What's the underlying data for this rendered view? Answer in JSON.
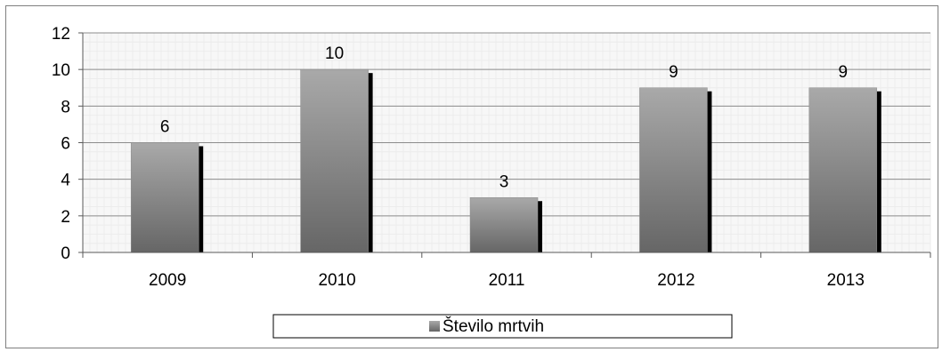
{
  "chart_data": {
    "type": "bar",
    "categories": [
      "2009",
      "2010",
      "2011",
      "2012",
      "2013"
    ],
    "series": [
      {
        "name": "Število mrtvih",
        "values": [
          6,
          10,
          3,
          9,
          9
        ]
      }
    ],
    "data_labels": [
      "6",
      "10",
      "3",
      "9",
      "9"
    ],
    "yticks": [
      "0",
      "2",
      "4",
      "6",
      "8",
      "10",
      "12"
    ],
    "ylim": [
      0,
      12
    ],
    "grid": true,
    "legend_position": "bottom",
    "colors": {
      "bar_light": "#a6a6a6",
      "bar_dark": "#6b6b6b",
      "shadow": "#000000",
      "grid": "#d9d9d9"
    }
  }
}
